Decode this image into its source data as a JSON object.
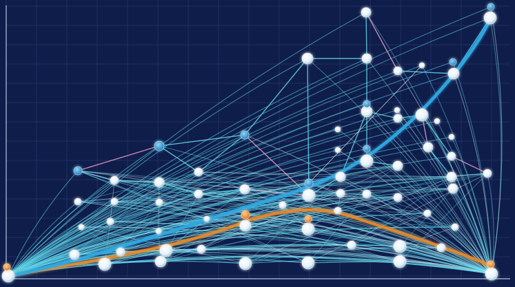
{
  "scene": {
    "kind": "abstract network graph illustration",
    "colors": {
      "background": "#0f1d4a",
      "grid": "#2a3d78",
      "axis": "#b8c6e8",
      "line_cyan": "#5fd6ea",
      "line_pale": "#c9f4fb",
      "line_pink": "#e89cc6",
      "trend_blue": "#2fa8e0",
      "trend_orange": "#e8892a",
      "node_white": "#f2f7fb",
      "node_blue": "#3aa6dc",
      "node_orange": "#f08a2a"
    }
  }
}
